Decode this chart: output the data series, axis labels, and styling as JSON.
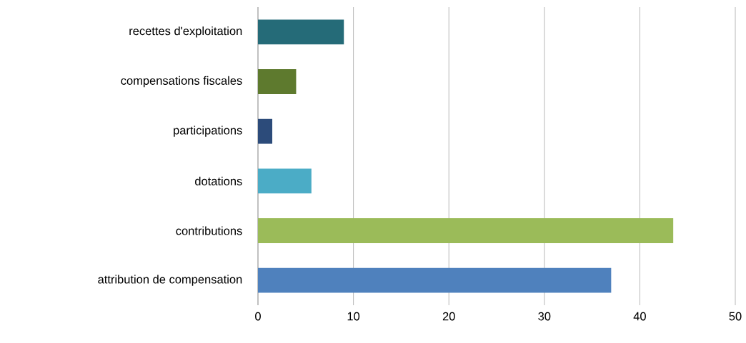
{
  "chart_data": {
    "type": "bar",
    "orientation": "horizontal",
    "categories": [
      "recettes d'exploitation",
      "compensations fiscales",
      "participations",
      "dotations",
      "contributions",
      "attribution de compensation"
    ],
    "values": [
      9,
      4,
      1.5,
      5.6,
      43.5,
      37
    ],
    "colors": [
      "#256b78",
      "#5e7a2e",
      "#2c4b7a",
      "#4bacc6",
      "#9bbb59",
      "#4f81bd"
    ],
    "xlim": [
      0,
      50
    ],
    "xticks": [
      0,
      10,
      20,
      30,
      40,
      50
    ],
    "grid": "x"
  }
}
